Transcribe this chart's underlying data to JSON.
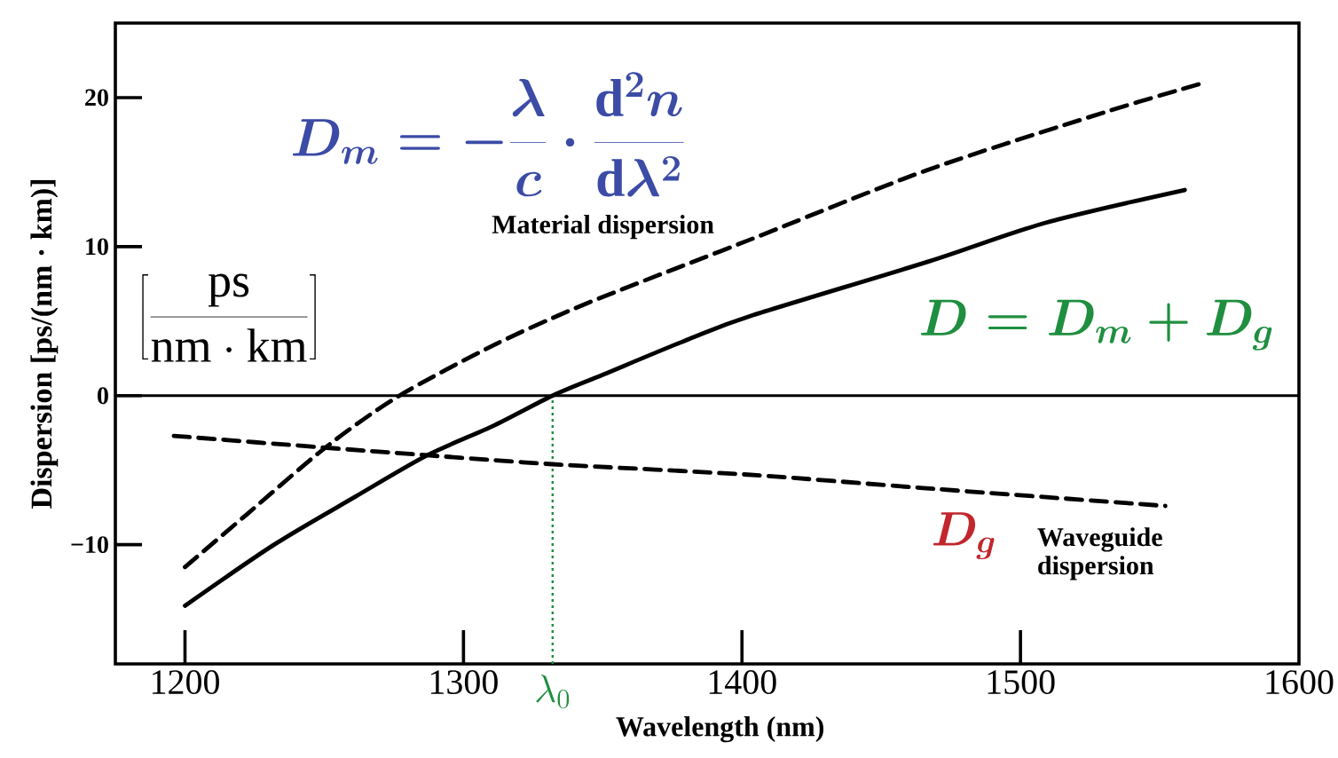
{
  "chart_data": {
    "type": "line",
    "xlabel": "Wavelength (nm)",
    "ylabel": "Dispersion [ps/(nm · km)]",
    "xlim": [
      1175,
      1600
    ],
    "xticks": [
      1200,
      1300,
      1400,
      1500,
      1600
    ],
    "ylim": [
      -18,
      25
    ],
    "yticks": [
      {
        "value": -10,
        "label": "−10"
      },
      0,
      10,
      20
    ],
    "marker": "none",
    "series": [
      {
        "name": "Material dispersion",
        "color": "#000000",
        "line_style": "dashed",
        "x": [
          1200,
          1222,
          1251,
          1277,
          1311,
          1338,
          1362,
          1402,
          1466,
          1530,
          1566
        ],
        "values": [
          -11.5,
          -8.0,
          -3.4,
          0,
          3.4,
          5.7,
          7.5,
          10.4,
          15.1,
          19.0,
          21.0
        ]
      },
      {
        "name": "Waveguide dispersion",
        "color": "#000000",
        "line_style": "dashed",
        "x": [
          1196,
          1251,
          1287,
          1332,
          1402,
          1465,
          1552
        ],
        "values": [
          -2.7,
          -3.5,
          -4.0,
          -4.6,
          -5.3,
          -6.2,
          -7.4
        ]
      },
      {
        "color": "#000000",
        "line_style": "solid",
        "x": [
          1200,
          1232,
          1261,
          1287,
          1311,
          1332,
          1350,
          1381,
          1404,
          1467,
          1509,
          1559
        ],
        "values": [
          -14.1,
          -10.0,
          -6.8,
          -4.0,
          -2.0,
          0,
          1.4,
          3.8,
          5.4,
          9.0,
          11.6,
          13.8
        ]
      }
    ],
    "ref_lines": [
      {
        "axis": "y",
        "value": 0,
        "color": "#000000",
        "line_style": "solid"
      },
      {
        "axis": "x",
        "value": 1332,
        "label": "\\lambda_0",
        "color": "#1f8f3f",
        "line_style": "dotted"
      }
    ],
    "annotations": [
      "D_m = -\\frac{\\lambda}{c}\\cdot\\frac{\\mathrm{d}^2 n}{\\mathrm{d}\\lambda^2}",
      "\\left[\\frac{\\mathrm{ps}}{\\mathrm{nm}\\cdot\\mathrm{km}}\\right]",
      "D = D_m + D_g",
      "D_g"
    ]
  }
}
